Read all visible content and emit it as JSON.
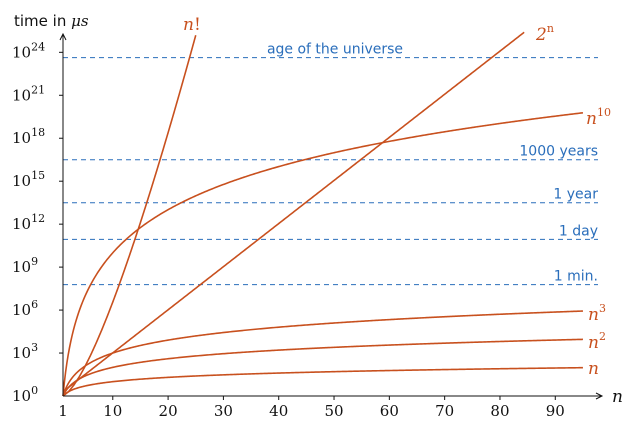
{
  "chart_data": {
    "type": "line",
    "title": "",
    "xlabel": "n",
    "ylabel": "time in μs",
    "ylabel_prefix": "time in ",
    "ylabel_unit": "μs",
    "y_scale": "log10",
    "xlim": [
      1,
      97
    ],
    "ylim": [
      1,
      1e+25
    ],
    "grid": false,
    "legend": "none (curves labeled inline)",
    "x_ticks": [
      1,
      10,
      20,
      30,
      40,
      50,
      60,
      70,
      80,
      90
    ],
    "y_ticks": [
      {
        "base": "10",
        "exp": "0",
        "value": 1
      },
      {
        "base": "10",
        "exp": "3",
        "value": 1000.0
      },
      {
        "base": "10",
        "exp": "6",
        "value": 1000000.0
      },
      {
        "base": "10",
        "exp": "9",
        "value": 1000000000.0
      },
      {
        "base": "10",
        "exp": "12",
        "value": 1000000000000.0
      },
      {
        "base": "10",
        "exp": "15",
        "value": 1000000000000000.0
      },
      {
        "base": "10",
        "exp": "18",
        "value": 1e+18
      },
      {
        "base": "10",
        "exp": "21",
        "value": 1e+21
      },
      {
        "base": "10",
        "exp": "24",
        "value": 1e+24
      }
    ],
    "reference_lines": [
      {
        "label": "1 min.",
        "value": 60000000.0
      },
      {
        "label": "1 day",
        "value": 86400000000.0
      },
      {
        "label": "1 year",
        "value": 31500000000000.0
      },
      {
        "label": "1000 years",
        "value": 3.15e+16
      },
      {
        "label": "age of the universe",
        "value": 4.3e+23
      }
    ],
    "series": [
      {
        "name": "n!",
        "base": "n",
        "sup": "!",
        "x_range": [
          1,
          25
        ]
      },
      {
        "name": "2^n",
        "base": "2",
        "sup": "n",
        "x_range": [
          1,
          85
        ]
      },
      {
        "name": "n^10",
        "base": "n",
        "sup": "10",
        "x_range": [
          1,
          95
        ]
      },
      {
        "name": "n^3",
        "base": "n",
        "sup": "3",
        "x_range": [
          1,
          95
        ]
      },
      {
        "name": "n^2",
        "base": "n",
        "sup": "2",
        "x_range": [
          1,
          95
        ]
      },
      {
        "name": "n",
        "base": "n",
        "sup": "",
        "x_range": [
          1,
          95
        ]
      }
    ]
  },
  "colors": {
    "curve": "#c8501e",
    "reference": "#2a6ebb",
    "axis": "#111111"
  }
}
